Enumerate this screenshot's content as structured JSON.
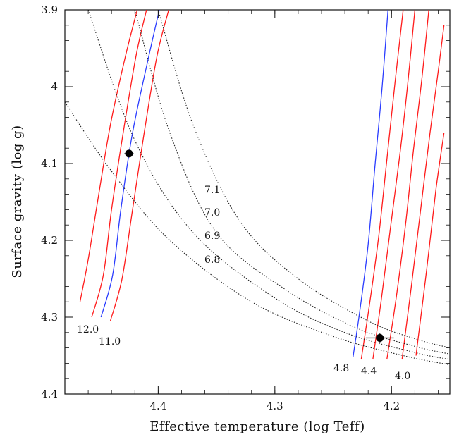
{
  "chart_data": {
    "type": "line",
    "xlabel": "Effective temperature (log Teff)",
    "ylabel": "Surface gravity (log g)",
    "xlim": [
      4.48,
      4.15
    ],
    "ylim": [
      4.4,
      3.9
    ],
    "x_ticks": [
      "4.4",
      "4.3",
      "4.2"
    ],
    "y_ticks": [
      "3.9",
      "4",
      "4.1",
      "4.2",
      "4.3",
      "4.4"
    ],
    "grid": false,
    "colors": {
      "red": "#ff1a1a",
      "blue": "#2a3cff",
      "dotted": "#222222",
      "point": "#000000"
    },
    "track_groups": [
      {
        "labels": [
          "12.0",
          "11.0"
        ],
        "series": [
          {
            "color": "red",
            "points": [
              [
                4.457,
                4.3
              ],
              [
                4.447,
                4.245
              ],
              [
                4.44,
                4.16
              ],
              [
                4.43,
                4.06
              ],
              [
                4.419,
                3.96
              ],
              [
                4.41,
                3.9
              ]
            ]
          },
          {
            "color": "blue",
            "points": [
              [
                4.449,
                4.3
              ],
              [
                4.439,
                4.245
              ],
              [
                4.432,
                4.16
              ],
              [
                4.422,
                4.06
              ],
              [
                4.408,
                3.96
              ],
              [
                4.399,
                3.9
              ]
            ]
          },
          {
            "color": "red",
            "points": [
              [
                4.441,
                4.305
              ],
              [
                4.431,
                4.25
              ],
              [
                4.422,
                4.16
              ],
              [
                4.412,
                4.06
              ],
              [
                4.401,
                3.96
              ],
              [
                4.391,
                3.9
              ]
            ]
          },
          {
            "color": "red",
            "points": [
              [
                4.467,
                4.28
              ],
              [
                4.46,
                4.225
              ],
              [
                4.452,
                4.15
              ],
              [
                4.441,
                4.05
              ],
              [
                4.428,
                3.96
              ],
              [
                4.418,
                3.9
              ]
            ]
          }
        ]
      },
      {
        "labels": [
          "4.8",
          "4.4",
          "4.0"
        ],
        "series": [
          {
            "color": "blue",
            "points": [
              [
                4.233,
                4.352
              ],
              [
                4.227,
                4.29
              ],
              [
                4.22,
                4.205
              ],
              [
                4.214,
                4.1
              ],
              [
                4.208,
                4.0
              ],
              [
                4.203,
                3.9
              ]
            ]
          },
          {
            "color": "red",
            "points": [
              [
                4.226,
                4.355
              ],
              [
                4.219,
                4.285
              ],
              [
                4.211,
                4.195
              ],
              [
                4.204,
                4.095
              ],
              [
                4.197,
                3.995
              ],
              [
                4.19,
                3.9
              ]
            ]
          },
          {
            "color": "red",
            "points": [
              [
                4.216,
                4.355
              ],
              [
                4.209,
                4.28
              ],
              [
                4.201,
                4.185
              ],
              [
                4.193,
                4.09
              ],
              [
                4.186,
                3.995
              ],
              [
                4.18,
                3.9
              ]
            ]
          },
          {
            "color": "red",
            "points": [
              [
                4.204,
                4.355
              ],
              [
                4.196,
                4.275
              ],
              [
                4.188,
                4.18
              ],
              [
                4.181,
                4.08
              ],
              [
                4.174,
                3.99
              ],
              [
                4.168,
                3.9
              ]
            ]
          },
          {
            "color": "red",
            "points": [
              [
                4.191,
                4.355
              ],
              [
                4.183,
                4.26
              ],
              [
                4.175,
                4.16
              ],
              [
                4.167,
                4.06
              ],
              [
                4.16,
                3.98
              ],
              [
                4.155,
                3.92
              ]
            ]
          },
          {
            "color": "red",
            "points": [
              [
                4.179,
                4.35
              ],
              [
                4.17,
                4.24
              ],
              [
                4.162,
                4.135
              ],
              [
                4.155,
                4.06
              ]
            ]
          }
        ]
      }
    ],
    "isochrones": [
      {
        "label": "7.1",
        "points": [
          [
            4.4,
            3.9
          ],
          [
            4.37,
            4.05
          ],
          [
            4.33,
            4.175
          ],
          [
            4.28,
            4.25
          ],
          [
            4.22,
            4.305
          ],
          [
            4.18,
            4.328
          ],
          [
            4.15,
            4.34
          ]
        ]
      },
      {
        "label": "7.0",
        "points": [
          [
            4.42,
            3.9
          ],
          [
            4.39,
            4.06
          ],
          [
            4.35,
            4.19
          ],
          [
            4.29,
            4.265
          ],
          [
            4.23,
            4.314
          ],
          [
            4.18,
            4.338
          ],
          [
            4.15,
            4.348
          ]
        ]
      },
      {
        "label": "6.9",
        "points": [
          [
            4.46,
            3.9
          ],
          [
            4.42,
            4.07
          ],
          [
            4.37,
            4.19
          ],
          [
            4.3,
            4.275
          ],
          [
            4.24,
            4.32
          ],
          [
            4.18,
            4.346
          ],
          [
            4.15,
            4.355
          ]
        ]
      },
      {
        "label": "6.8",
        "points": [
          [
            4.48,
            4.02
          ],
          [
            4.44,
            4.11
          ],
          [
            4.39,
            4.2
          ],
          [
            4.32,
            4.28
          ],
          [
            4.25,
            4.325
          ],
          [
            4.19,
            4.35
          ],
          [
            4.15,
            4.362
          ]
        ]
      }
    ],
    "data_points": [
      {
        "x": 4.425,
        "y": 4.087,
        "xerr": 0.004,
        "yerr": 0.003
      },
      {
        "x": 4.21,
        "y": 4.327,
        "xerr": 0.012,
        "yerr": 0.006
      }
    ]
  }
}
